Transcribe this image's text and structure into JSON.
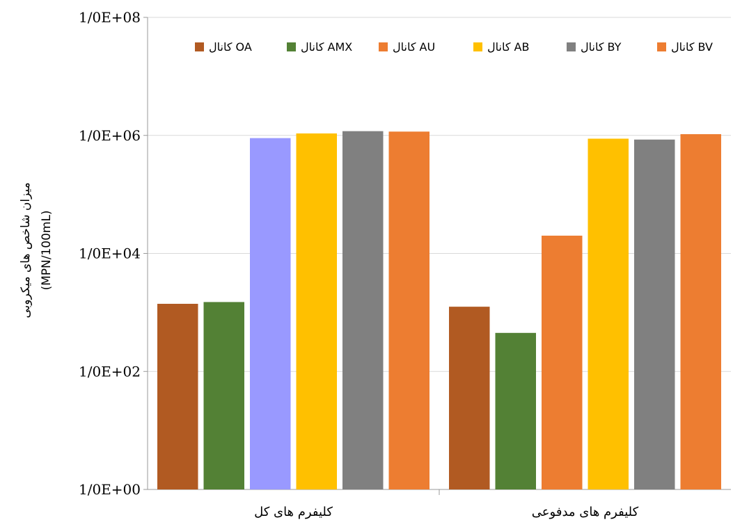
{
  "chart_data": {
    "type": "bar",
    "y_scale": "log10",
    "ylim": [
      1,
      100000000
    ],
    "grid": true,
    "legend_position": "top",
    "y_tick_labels": [
      "1/0E+00",
      "1/0E+02",
      "1/0E+04",
      "1/0E+06",
      "1/0E+08"
    ],
    "ylabel_line1": "میزان شاخص های میکروبی",
    "ylabel_line2": "(MPN/100mL)",
    "categories": [
      "کلیفرم های کل",
      "کلیفرم های مدفوعی"
    ],
    "series": [
      {
        "name": "کانال OA",
        "color": "#B15A22",
        "values": [
          1400,
          1250
        ]
      },
      {
        "name": "کانال AMX",
        "color": "#538135",
        "values": [
          1500,
          450
        ]
      },
      {
        "name": "کانال AU",
        "color": "#ED7D31",
        "values": [
          900000,
          20000
        ]
      },
      {
        "name": "کانال AB",
        "color": "#FFC000",
        "values": [
          1080000,
          880000
        ]
      },
      {
        "name": "کانال BY",
        "color": "#808080",
        "values": [
          1180000,
          850000
        ]
      },
      {
        "name": "کانال BV",
        "color": "#ED7D31",
        "values": [
          1160000,
          1050000
        ]
      }
    ],
    "point_colors": [
      [
        "#B15A22",
        "#B15A22"
      ],
      [
        "#538135",
        "#538135"
      ],
      [
        "#9999FF",
        "#ED7D31"
      ],
      [
        "#FFC000",
        "#FFC000"
      ],
      [
        "#808080",
        "#808080"
      ],
      [
        "#ED7D31",
        "#ED7D31"
      ]
    ]
  }
}
